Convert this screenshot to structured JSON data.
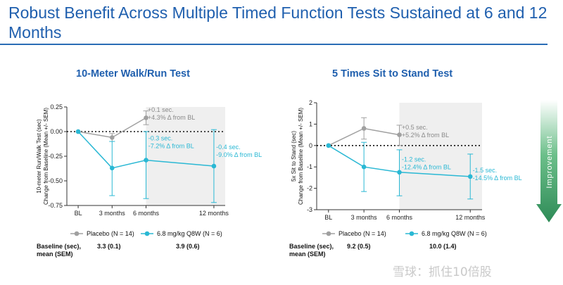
{
  "page": {
    "title": "Robust Benefit Across Multiple Timed Function Tests Sustained at 6 and 12 Months",
    "watermark": "雪球：抓住10倍股"
  },
  "improvement_arrow": {
    "label": "Improvement",
    "color": "#2e8b57"
  },
  "colors": {
    "placebo": "#a0a0a0",
    "treatment": "#2ab8d4",
    "shade": "#efefef",
    "title": "#1f5fae"
  },
  "chart_data": [
    {
      "type": "line",
      "title": "10-Meter Walk/Run Test",
      "ylabel_lines": [
        "10-meter Run/Walk Test (sec)",
        "Change from Baseline (Mean +/- SEM)"
      ],
      "x_labels": [
        "BL",
        "3 months",
        "6 months",
        "12 months"
      ],
      "x": [
        0,
        3,
        6,
        12
      ],
      "ylim": [
        -0.75,
        0.25
      ],
      "yticks": [
        "0.25",
        "0.00",
        "-0.25",
        "-0.50",
        "-0.75"
      ],
      "shaded_from": 6,
      "zero_line": "dotted",
      "series": [
        {
          "name": "Placebo (N = 14)",
          "color": "#a0a0a0",
          "x": [
            0,
            3,
            6
          ],
          "values": [
            0.0,
            -0.06,
            0.14
          ],
          "err_low": [
            0.0,
            -0.1,
            0.07
          ],
          "err_high": [
            0.0,
            -0.02,
            0.21
          ]
        },
        {
          "name": "6.8 mg/kg Q8W (N = 6)",
          "color": "#2ab8d4",
          "x": [
            0,
            3,
            6,
            12
          ],
          "values": [
            0.0,
            -0.37,
            -0.29,
            -0.35
          ],
          "err_low": [
            0.0,
            -0.65,
            -0.68,
            -0.72
          ],
          "err_high": [
            0.0,
            -0.1,
            0.0,
            0.02
          ]
        }
      ],
      "annotations": [
        {
          "lines": [
            "+0.1 sec.",
            "+4.3% Δ from BL"
          ],
          "color": "#8a8a8a",
          "x": 6.15,
          "y": 0.2
        },
        {
          "lines": [
            "-0.3 sec.",
            "-7.2% Δ from BL"
          ],
          "color": "#2ab8d4",
          "x": 6.2,
          "y": -0.09
        },
        {
          "lines": [
            "-0.4 sec.",
            "-9.0% Δ from BL"
          ],
          "color": "#2ab8d4",
          "x": 12.2,
          "y": -0.18
        }
      ],
      "legend": [
        "Placebo (N = 14)",
        "6.8 mg/kg Q8W (N = 6)"
      ],
      "baseline": {
        "label_lines": [
          "Baseline (sec),",
          "mean (SEM)"
        ],
        "placebo": "3.3 (0.1)",
        "treatment": "3.9 (0.6)"
      }
    },
    {
      "type": "line",
      "title": "5 Times Sit to Stand Test",
      "ylabel_lines": [
        "5x Sit to Stand (sec)",
        "Change from Baseline (Mean +/- SEM)"
      ],
      "x_labels": [
        "BL",
        "3 months",
        "6 months",
        "12 months"
      ],
      "x": [
        0,
        3,
        6,
        12
      ],
      "ylim": [
        -3,
        2
      ],
      "yticks": [
        "2",
        "1",
        "0",
        "-1",
        "-2",
        "-3"
      ],
      "shaded_from": 6,
      "zero_line": "dotted",
      "series": [
        {
          "name": "Placebo (N = 14)",
          "color": "#a0a0a0",
          "x": [
            0,
            3,
            6
          ],
          "values": [
            0.0,
            0.8,
            0.5
          ],
          "err_low": [
            0.0,
            0.3,
            0.0
          ],
          "err_high": [
            0.0,
            1.3,
            0.95
          ]
        },
        {
          "name": "6.8 mg/kg Q8W (N = 6)",
          "color": "#2ab8d4",
          "x": [
            0,
            3,
            6,
            12
          ],
          "values": [
            0.0,
            -1.0,
            -1.25,
            -1.45
          ],
          "err_low": [
            0.0,
            -2.15,
            -2.35,
            -2.5
          ],
          "err_high": [
            0.0,
            0.15,
            -0.2,
            -0.4
          ]
        }
      ],
      "annotations": [
        {
          "lines": [
            "+0.5 sec.",
            "+5.2% Δ from BL"
          ],
          "color": "#8a8a8a",
          "x": 6.2,
          "y": 0.75
        },
        {
          "lines": [
            "-1.2 sec.",
            "-12.4% Δ from BL"
          ],
          "color": "#2ab8d4",
          "x": 6.2,
          "y": -0.75
        },
        {
          "lines": [
            "-1.5 sec.",
            "-14.5% Δ from BL"
          ],
          "color": "#2ab8d4",
          "x": 12.2,
          "y": -1.25
        }
      ],
      "legend": [
        "Placebo (N = 14)",
        "6.8 mg/kg Q8W (N = 6)"
      ],
      "baseline": {
        "label_lines": [
          "Baseline (sec),",
          "mean (SEM)"
        ],
        "placebo": "9.2 (0.5)",
        "treatment": "10.0 (1.4)"
      }
    }
  ]
}
